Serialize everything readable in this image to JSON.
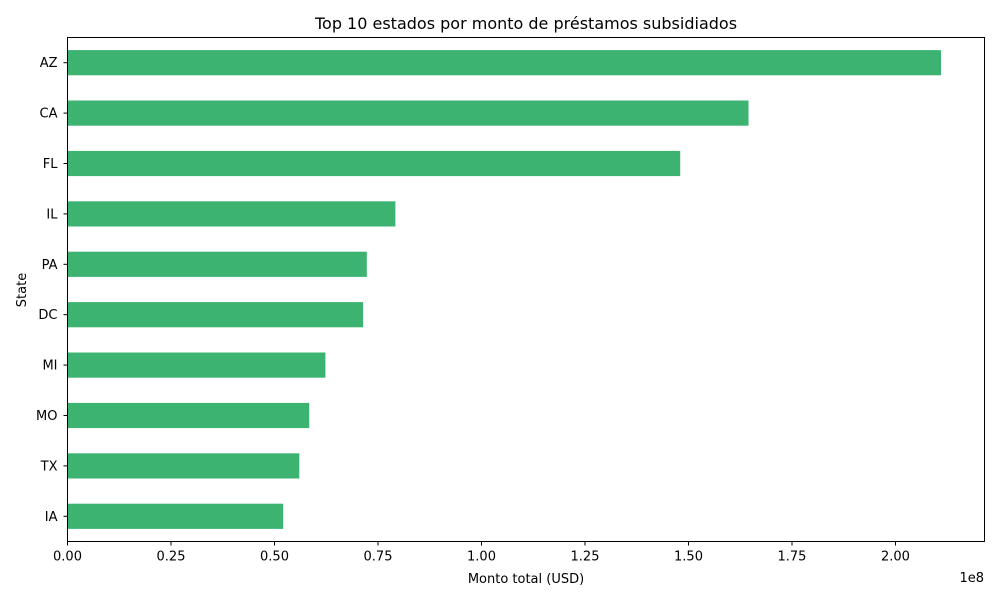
{
  "chart_data": {
    "type": "bar",
    "orientation": "horizontal",
    "title": "Top 10 estados por monto de préstamos subsidiados",
    "xlabel": "Monto total (USD)",
    "ylabel": "State",
    "x_offset_label": "1e8",
    "categories": [
      "AZ",
      "CA",
      "FL",
      "IL",
      "PA",
      "DC",
      "MI",
      "MO",
      "TX",
      "IA"
    ],
    "values": [
      211000000,
      164500000,
      148000000,
      79200000,
      72300000,
      71400000,
      62300000,
      58400000,
      56000000,
      52100000
    ],
    "xlim": [
      0,
      221500000
    ],
    "x_ticks": [
      0,
      25000000,
      50000000,
      75000000,
      100000000,
      125000000,
      150000000,
      175000000,
      200000000
    ],
    "x_tick_labels": [
      "0.00",
      "0.25",
      "0.50",
      "0.75",
      "1.00",
      "1.25",
      "1.50",
      "1.75",
      "2.00"
    ],
    "bar_color": "#3cb371",
    "grid": false,
    "legend": "none"
  }
}
